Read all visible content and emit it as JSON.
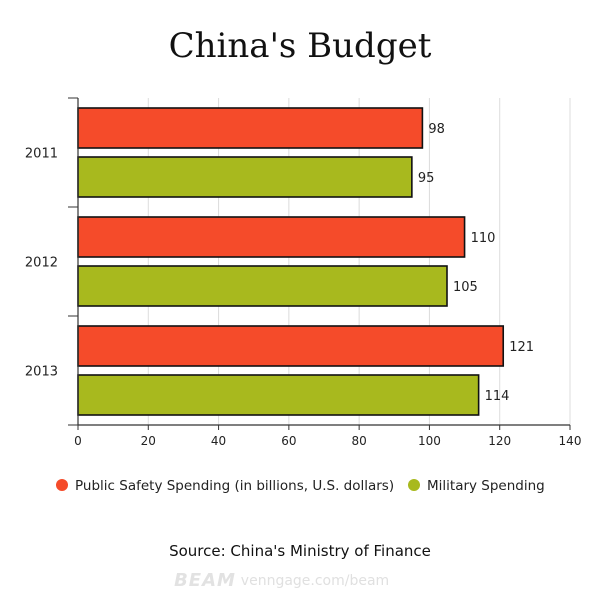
{
  "chart_data": {
    "type": "bar",
    "orientation": "horizontal",
    "title": "China's Budget",
    "categories": [
      "2011",
      "2012",
      "2013"
    ],
    "series": [
      {
        "name": "Public Safety Spending (in billions, U.S. dollars)",
        "color": "#f54b2a",
        "values": [
          98,
          110,
          121
        ]
      },
      {
        "name": "Military Spending",
        "color": "#a8b91e",
        "values": [
          95,
          105,
          114
        ]
      }
    ],
    "xlim": [
      0,
      140
    ],
    "xticks": [
      0,
      20,
      40,
      60,
      80,
      100,
      120,
      140
    ],
    "xlabel": "",
    "ylabel": "",
    "grid": true,
    "legend_position": "bottom"
  },
  "source": "Source: China's Ministry of Finance",
  "footer": {
    "logo_text": "BEAM",
    "brand_text": "venngage.com/beam"
  }
}
